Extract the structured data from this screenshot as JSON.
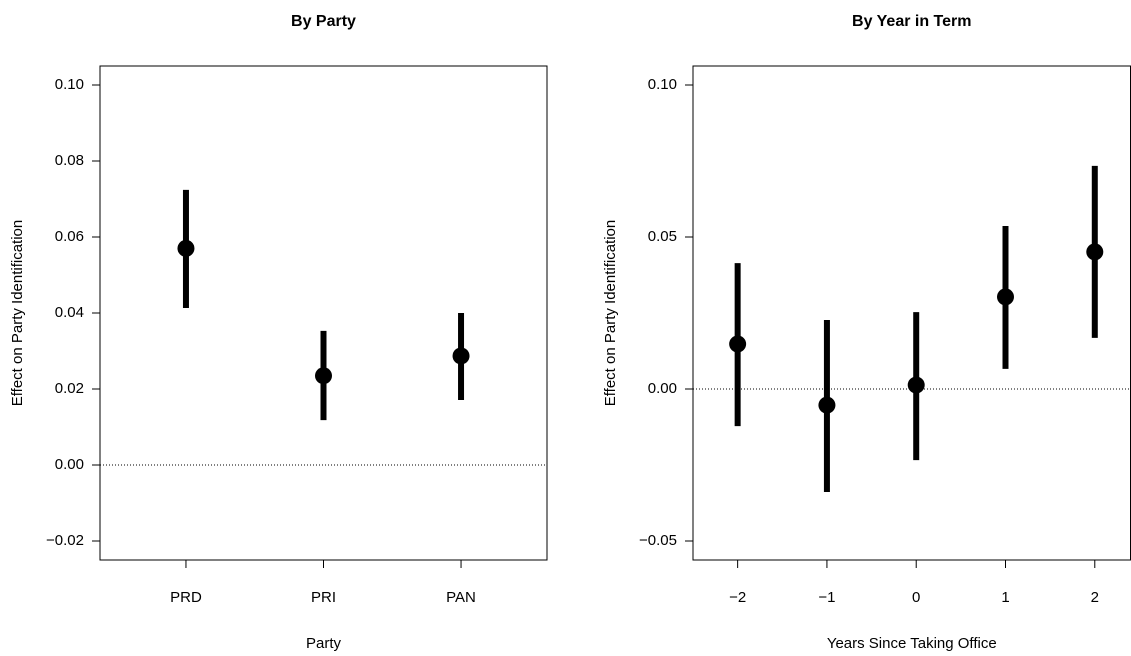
{
  "chart_data": [
    {
      "type": "errorbar",
      "title": "By Party",
      "xlabel": "Party",
      "ylabel": "Effect on Party Identification",
      "categories": [
        "PRD",
        "PRI",
        "PAN"
      ],
      "values": [
        0.057,
        0.0235,
        0.0287
      ],
      "lower": [
        0.0413,
        0.0118,
        0.0171
      ],
      "upper": [
        0.0724,
        0.0353,
        0.04
      ],
      "color": "#000000",
      "ylim": [
        -0.025,
        0.105
      ],
      "yticks": [
        {
          "value": -0.02,
          "label": "−0.02"
        },
        {
          "value": 0,
          "label": "0.00"
        },
        {
          "value": 0.02,
          "label": "0.02"
        },
        {
          "value": 0.04,
          "label": "0.04"
        },
        {
          "value": 0.06,
          "label": "0.06"
        },
        {
          "value": 0.08,
          "label": "0.08"
        },
        {
          "value": 0.1,
          "label": "0.10"
        }
      ],
      "hline": 0
    },
    {
      "type": "errorbar",
      "title": "By Year in Term",
      "xlabel": "Years Since Taking Office",
      "ylabel": "Effect on Party Identification",
      "x": [
        -2,
        -1,
        0,
        1,
        2
      ],
      "values": [
        0.0148,
        -0.0053,
        0.0013,
        0.0303,
        0.0451
      ],
      "lower": [
        -0.0122,
        -0.0339,
        -0.0234,
        0.0066,
        0.0168
      ],
      "upper": [
        0.0414,
        0.0227,
        0.0253,
        0.0536,
        0.0734
      ],
      "color": "#000000",
      "xlim": [
        -2.5,
        2.4
      ],
      "xticks": [
        {
          "value": -2,
          "label": "−2"
        },
        {
          "value": -1,
          "label": "−1"
        },
        0,
        1,
        2
      ],
      "ylim": [
        -0.05625,
        0.10625
      ],
      "yticks": [
        {
          "value": -0.05,
          "label": "−0.05"
        },
        {
          "value": 0,
          "label": "0.00"
        },
        {
          "value": 0.05,
          "label": "0.05"
        },
        {
          "value": 0.1,
          "label": "0.10"
        }
      ],
      "hline": 0
    }
  ]
}
